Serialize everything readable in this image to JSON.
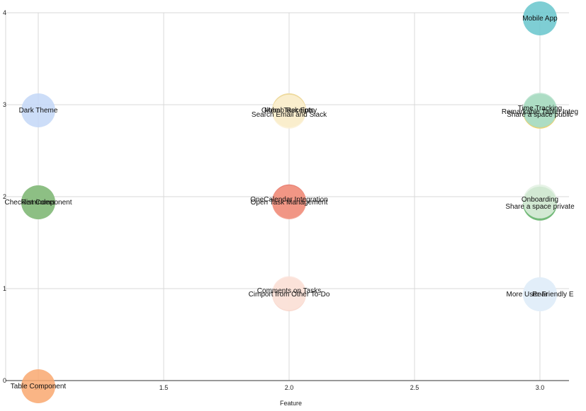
{
  "chart_data": {
    "type": "scatter",
    "title": "",
    "xlabel": "Feature",
    "ylabel": "",
    "xlim": [
      1.0,
      3.0
    ],
    "ylim": [
      0,
      4
    ],
    "grid": true,
    "x_ticks": [
      "1.0",
      "1.5",
      "2.0",
      "2.5",
      "3.0"
    ],
    "y_ticks": [
      "0",
      "1",
      "2",
      "3",
      "4"
    ],
    "points": [
      {
        "label": "Table Component",
        "x": 1.0,
        "y": 0,
        "color": "#F9A870",
        "dy": 0
      },
      {
        "label": "Checklist Component",
        "x": 1.0,
        "y": 2,
        "color": "#7BB173",
        "dy": 0
      },
      {
        "label": "Reminders",
        "x": 1.0,
        "y": 2,
        "color": "#8DBF84",
        "dy": 0
      },
      {
        "label": "Dark Theme",
        "x": 1.0,
        "y": 3,
        "color": "#C3D7F7",
        "dy": 0
      },
      {
        "label": "Cimport from Other To-Do",
        "x": 2.0,
        "y": 1,
        "color": "#F8D3C8",
        "dy": 0
      },
      {
        "label": "Comments on Tasks",
        "x": 2.0,
        "y": 1,
        "color": "#FBE3DA",
        "dy": -5
      },
      {
        "label": "OneCalendar Integration",
        "x": 2.0,
        "y": 2,
        "color": "#E46A5C",
        "dy": -4
      },
      {
        "label": "Open Task Management",
        "x": 2.0,
        "y": 2,
        "color": "#F29A88",
        "dy": 0
      },
      {
        "label": "Global Task Entry",
        "x": 2.0,
        "y": 3,
        "color": "#E1C271",
        "dy": 0
      },
      {
        "label": "Memo Receipts",
        "x": 2.0,
        "y": 3,
        "color": "#F0DDA1",
        "dy": 0
      },
      {
        "label": "Search Email and Slack",
        "x": 2.0,
        "y": 3,
        "color": "#FBF1D6",
        "dy": 6
      },
      {
        "label": "More User-Friendly E",
        "x": 3.0,
        "y": 1,
        "color": "#D6E8F7",
        "dy": 0
      },
      {
        "label": "Rear",
        "x": 3.0,
        "y": 1,
        "color": "#E3EEF9",
        "dy": 0
      },
      {
        "label": "Share a space private",
        "x": 3.0,
        "y": 2,
        "color": "#5BAE61",
        "dy": 6
      },
      {
        "label": "Onboarding",
        "x": 3.0,
        "y": 2,
        "color": "#E3F1E3",
        "dy": -4
      },
      {
        "label": "Share a space public",
        "x": 3.0,
        "y": 3,
        "color": "#F2C94C",
        "dy": 6
      },
      {
        "label": "Time Tracking",
        "x": 3.0,
        "y": 3,
        "color": "#BDE3CF",
        "dy": -3
      },
      {
        "label": "Remarkable Tablet Integ",
        "x": 3.0,
        "y": 3,
        "color": "#A8DCC4",
        "dy": 2
      },
      {
        "label": "Mobile App",
        "x": 3.0,
        "y": 4,
        "color": "#67C6CC",
        "dy": 0
      }
    ]
  }
}
